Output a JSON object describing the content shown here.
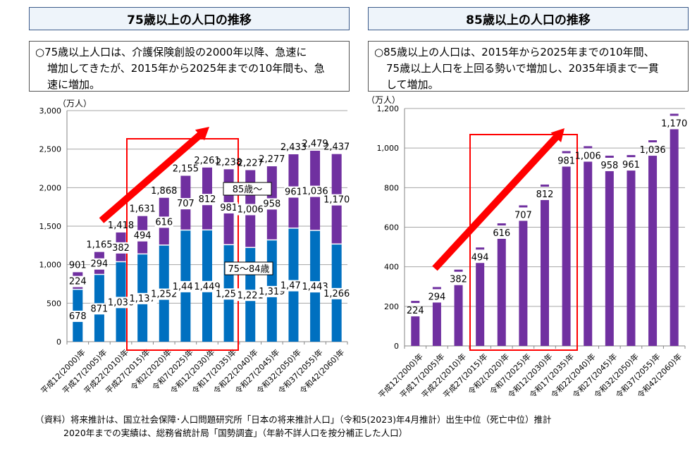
{
  "panels": [
    {
      "title": "75歳以上の人口の推移",
      "description": [
        "○75歳以上人口は、介護保険創設の2000年以降、急速に",
        "増加してきたが、2015年から2025年までの10年間も、急",
        "速に増加。"
      ]
    },
    {
      "title": "85歳以上の人口の推移",
      "description": [
        "○85歳以上の人口は、2015年から2025年までの10年間、",
        "75歳以上人口を上回る勢いで増加し、2035年頃まで一貫",
        "して増加。"
      ]
    }
  ],
  "footer": [
    "（資料）将来推計は、国立社会保障･人口問題研究所「日本の将来推計人口」（令和5(2023)年4月推計）出生中位（死亡中位）推計",
    "2020年までの実績は、総務省統計局「国勢調査」（年齢不詳人口を按分補正した人口）"
  ],
  "colors": {
    "age75_84": "#0070c0",
    "age85plus": "#7030a0",
    "highlight": "#ff0000",
    "grid": "#a6a6a6"
  },
  "chart_data": [
    {
      "type": "bar",
      "stacked": true,
      "title": "75歳以上の人口の推移",
      "ylabel": "（万人）",
      "xlabel": "",
      "ylim": [
        0,
        3000
      ],
      "yticks": [
        0,
        500,
        1000,
        1500,
        2000,
        2500,
        3000
      ],
      "ytick_labels": [
        "0",
        "500",
        "1,000",
        "1,500",
        "2,000",
        "2,500",
        "3,000"
      ],
      "grid": true,
      "categories": [
        "平成12(2000)年",
        "平成17(2005)年",
        "平成22(2010)年",
        "平成27(2015)年",
        "令和2(2020)年",
        "令和7(2025)年",
        "令和12(2030)年",
        "令和17(2035)年",
        "令和22(2040)年",
        "令和27(2045)年",
        "令和32(2050)年",
        "令和37(2055)年",
        "令和42(2060)年"
      ],
      "series": [
        {
          "name": "75～84歳",
          "values": [
            678,
            871,
            1036,
            1137,
            1252,
            1447,
            1449,
            1257,
            1221,
            1319,
            1472,
            1443,
            1266
          ]
        },
        {
          "name": "85歳～",
          "values": [
            224,
            294,
            382,
            494,
            616,
            707,
            812,
            981,
            1006,
            958,
            961,
            1036,
            1170
          ]
        }
      ],
      "totals": [
        901,
        1165,
        1418,
        1631,
        1868,
        2155,
        2261,
        2238,
        2227,
        2277,
        2433,
        2479,
        2437
      ],
      "value_labels": {
        "age75_84": [
          "678",
          "871",
          "1,036",
          "1,137",
          "1,252",
          "1,447",
          "1,449",
          "1,257",
          "1,221",
          "1,319",
          "1,472",
          "1,443",
          "1,266"
        ],
        "age85plus": [
          "224",
          "294",
          "382",
          "494",
          "616",
          "707",
          "812",
          "981",
          "1,006",
          "958",
          "961",
          "1,036",
          "1,170"
        ],
        "totals": [
          "901",
          "1,165",
          "1,418",
          "1,631",
          "1,868",
          "2,155",
          "2,261",
          "2,238",
          "2,227",
          "2,277",
          "2,433",
          "2,479",
          "2,437"
        ]
      },
      "legend": [
        "85歳～",
        "75～84歳"
      ],
      "legend_placement": "inline-center",
      "annotations": {
        "highlight_box": "平成27(2015)年–令和17(2035)年",
        "arrow": "increasing trend"
      }
    },
    {
      "type": "bar",
      "title": "85歳以上の人口の推移",
      "ylabel": "（万人）",
      "xlabel": "",
      "ylim": [
        0,
        1200
      ],
      "yticks": [
        0,
        200,
        400,
        600,
        800,
        1000,
        1200
      ],
      "ytick_labels": [
        "0",
        "200",
        "400",
        "600",
        "800",
        "1,000",
        "1,200"
      ],
      "grid": true,
      "categories": [
        "平成12(2000)年",
        "平成17(2005)年",
        "平成22(2010)年",
        "平成27(2015)年",
        "令和2(2020)年",
        "令和7(2025)年",
        "令和12(2030)年",
        "令和17(2035)年",
        "令和22(2040)年",
        "令和27(2045)年",
        "令和32(2050)年",
        "令和37(2055)年",
        "令和42(2060)年"
      ],
      "values": [
        224,
        294,
        382,
        494,
        616,
        707,
        812,
        981,
        1006,
        958,
        961,
        1036,
        1170
      ],
      "value_labels": [
        "224",
        "294",
        "382",
        "494",
        "616",
        "707",
        "812",
        "981",
        "1,006",
        "958",
        "961",
        "1,036",
        "1,170"
      ],
      "annotations": {
        "highlight_box": "平成27(2015)年–令和17(2035)年",
        "arrow": "increasing trend"
      }
    }
  ]
}
